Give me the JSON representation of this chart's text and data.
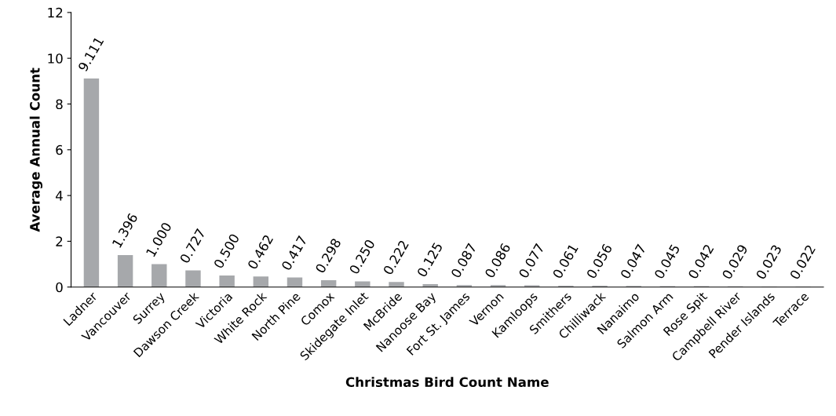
{
  "chart_data": {
    "type": "bar",
    "xlabel": "Christmas Bird Count Name",
    "ylabel": "Average Annual Count",
    "categories": [
      "Ladner",
      "Vancouver",
      "Surrey",
      "Dawson Creek",
      "Victoria",
      "White Rock",
      "North Pine",
      "Comox",
      "Skidegate Inlet",
      "McBride",
      "Nanoose Bay",
      "Fort St. James",
      "Vernon",
      "Kamloops",
      "Smithers",
      "Chilliwack",
      "Nanaimo",
      "Salmon Arm",
      "Rose Spit",
      "Campbell River",
      "Pender Islands",
      "Terrace"
    ],
    "values": [
      9.111,
      1.396,
      1.0,
      0.727,
      0.5,
      0.462,
      0.417,
      0.298,
      0.25,
      0.222,
      0.125,
      0.087,
      0.086,
      0.077,
      0.061,
      0.056,
      0.047,
      0.045,
      0.042,
      0.029,
      0.023,
      0.022
    ],
    "value_labels": [
      "9.111",
      "1.396",
      "1.000",
      "0.727",
      "0.500",
      "0.462",
      "0.417",
      "0.298",
      "0.250",
      "0.222",
      "0.125",
      "0.087",
      "0.086",
      "0.077",
      "0.061",
      "0.056",
      "0.047",
      "0.045",
      "0.042",
      "0.029",
      "0.023",
      "0.022"
    ],
    "color": "#a6a8ab",
    "ylim": [
      0,
      12
    ],
    "yticks": [
      0,
      2,
      4,
      6,
      8,
      10,
      12
    ],
    "grid": false,
    "legend": false
  }
}
